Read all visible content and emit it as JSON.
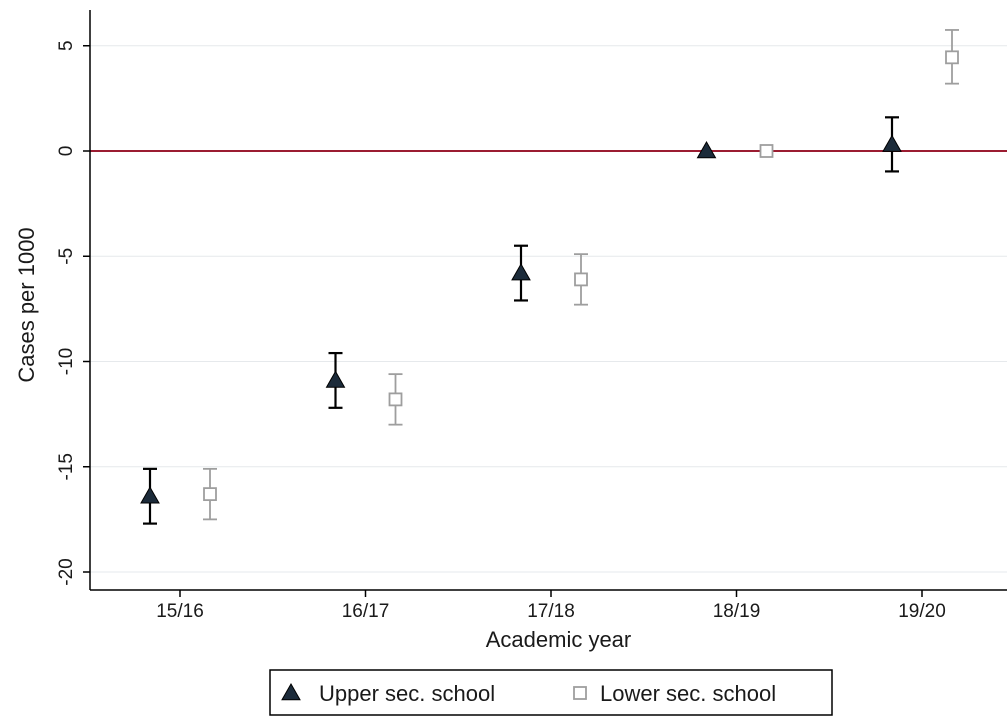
{
  "chart_data": {
    "type": "scatter",
    "xlabel": "Academic year",
    "ylabel": "Cases per 1000",
    "categories": [
      "15/16",
      "16/17",
      "17/18",
      "18/19",
      "19/20"
    ],
    "ylim": [
      -20,
      5
    ],
    "yticks": [
      5,
      0,
      -5,
      -10,
      -15,
      -20
    ],
    "grid": true,
    "reference_line": {
      "y": 0,
      "color": "#9b1c31"
    },
    "legend_position": "bottom",
    "series": [
      {
        "name": "Upper sec. school",
        "marker": "filled-triangle",
        "color": "#1c2b3a",
        "values": [
          -16.4,
          -10.9,
          -5.8,
          0,
          0.3
        ],
        "ci_low": [
          -17.7,
          -12.2,
          -7.1,
          0,
          -0.97
        ],
        "ci_high": [
          -15.1,
          -9.6,
          -4.5,
          0,
          1.6
        ]
      },
      {
        "name": "Lower sec. school",
        "marker": "hollow-square",
        "color": "#9e9e9e",
        "values": [
          -16.3,
          -11.8,
          -6.1,
          0,
          4.45
        ],
        "ci_low": [
          -17.5,
          -13.0,
          -7.3,
          0,
          3.2
        ],
        "ci_high": [
          -15.1,
          -10.6,
          -4.9,
          0,
          5.75
        ]
      }
    ]
  }
}
